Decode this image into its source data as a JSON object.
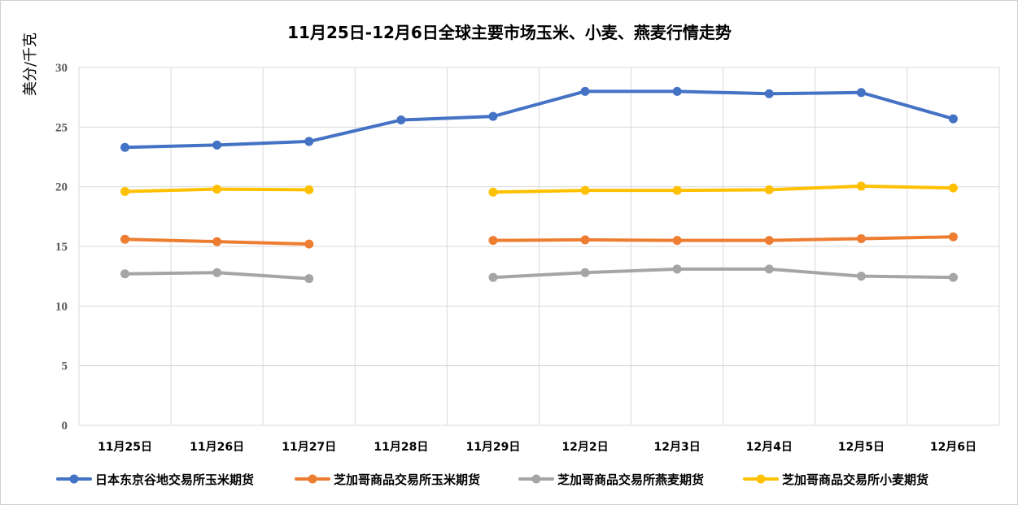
{
  "chart_data": {
    "type": "line",
    "title": "11月25日-12月6日全球主要市场玉米、小麦、燕麦行情走势",
    "ylabel": "美分/千克",
    "xlabel": "",
    "ylim": [
      0,
      30
    ],
    "yticks": [
      "0",
      "5",
      "10",
      "15",
      "20",
      "25",
      "30"
    ],
    "categories": [
      "11月25日",
      "11月26日",
      "11月27日",
      "11月28日",
      "11月29日",
      "12月2日",
      "12月3日",
      "12月4日",
      "12月5日",
      "12月6日"
    ],
    "grid": true,
    "legend_position": "bottom",
    "series": [
      {
        "name": "日本东京谷地交易所玉米期货",
        "color": "#4472C4",
        "values": [
          23.3,
          23.5,
          23.8,
          25.6,
          25.9,
          28.0,
          28.0,
          27.8,
          27.9,
          25.7
        ]
      },
      {
        "name": "芝加哥商品交易所玉米期货",
        "color": "#ED7D31",
        "values": [
          15.6,
          15.4,
          15.2,
          null,
          15.5,
          15.55,
          15.5,
          15.5,
          15.65,
          15.8
        ]
      },
      {
        "name": "芝加哥商品交易所燕麦期货",
        "color": "#A5A5A5",
        "values": [
          12.7,
          12.8,
          12.3,
          null,
          12.4,
          12.8,
          13.1,
          13.1,
          12.5,
          12.4
        ]
      },
      {
        "name": "芝加哥商品交易所小麦期货",
        "color": "#FFC000",
        "values": [
          19.6,
          19.8,
          19.75,
          null,
          19.55,
          19.7,
          19.7,
          19.75,
          20.05,
          19.9
        ]
      }
    ]
  }
}
